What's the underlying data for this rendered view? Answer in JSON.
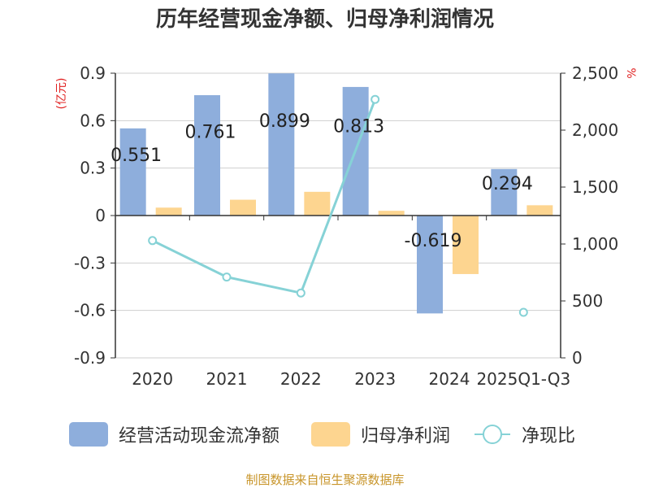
{
  "chart_data": {
    "type": "bar",
    "title": "历年经营现金净额、归母净利润情况",
    "categories": [
      "2020",
      "2021",
      "2022",
      "2023",
      "2024",
      "2025Q1-Q3"
    ],
    "series": [
      {
        "name": "经营活动现金流净额",
        "kind": "bar",
        "axis": "left",
        "color": "#8eaedc",
        "values": [
          0.551,
          0.761,
          0.899,
          0.813,
          -0.619,
          0.294
        ],
        "labels": [
          "0.551",
          "0.761",
          "0.899",
          "0.813",
          "-0.619",
          "0.294"
        ]
      },
      {
        "name": "归母净利润",
        "kind": "bar",
        "axis": "left",
        "color": "#fdd590",
        "values": [
          0.05,
          0.1,
          0.15,
          0.03,
          -0.37,
          0.065
        ]
      },
      {
        "name": "净现比",
        "kind": "line",
        "axis": "right",
        "color": "#86d2d6",
        "values": [
          1030,
          710,
          570,
          2270,
          null,
          400
        ]
      }
    ],
    "y_left": {
      "unit": "(亿元)",
      "ylim": [
        -0.9,
        0.9
      ],
      "ticks": [
        0.9,
        0.6,
        0.3,
        0,
        -0.3,
        -0.6,
        -0.9
      ],
      "tick_labels": [
        "0.9",
        "0.6",
        "0.3",
        "0",
        "-0.3",
        "-0.6",
        "-0.9"
      ]
    },
    "y_right": {
      "unit": "%",
      "ylim": [
        0,
        2500
      ],
      "ticks": [
        2500,
        2000,
        1500,
        1000,
        500,
        0
      ],
      "tick_labels": [
        "2,500",
        "2,000",
        "1,500",
        "1,000",
        "500",
        "0"
      ]
    },
    "grid": true,
    "legend_position": "bottom",
    "source": "制图数据来自恒生聚源数据库"
  }
}
